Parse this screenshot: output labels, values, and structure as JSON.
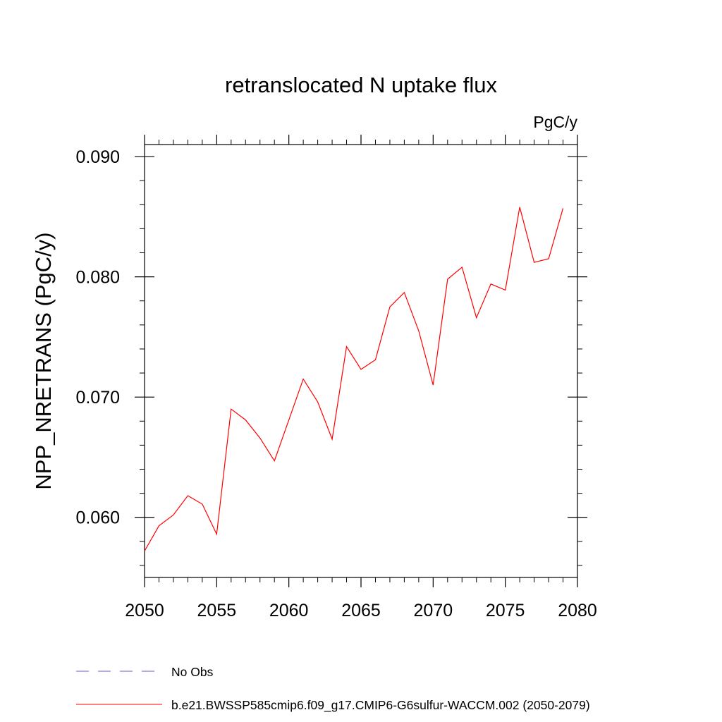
{
  "chart_data": {
    "type": "line",
    "title": "retranslocated N uptake flux",
    "units": "PgC/y",
    "xlabel": "",
    "ylabel": "NPP_NRETRANS  (PgC/y)",
    "xlim": [
      2050,
      2080
    ],
    "ylim": [
      0.055,
      0.091
    ],
    "x_ticks": [
      2050,
      2055,
      2060,
      2065,
      2070,
      2075,
      2080
    ],
    "y_ticks": [
      0.06,
      0.07,
      0.08,
      0.09
    ],
    "y_tick_labels": [
      "0.060",
      "0.070",
      "0.080",
      "0.090"
    ],
    "x": [
      2050,
      2051,
      2052,
      2053,
      2054,
      2055,
      2056,
      2057,
      2058,
      2059,
      2060,
      2061,
      2062,
      2063,
      2064,
      2065,
      2066,
      2067,
      2068,
      2069,
      2070,
      2071,
      2072,
      2073,
      2074,
      2075,
      2076,
      2077,
      2078,
      2079
    ],
    "series": [
      {
        "name": "b.e21.BWSSP585cmip6.f09_g17.CMIP6-G6sulfur-WACCM.002 (2050-2079)",
        "color": "#ff0000",
        "values": [
          0.0572,
          0.0593,
          0.0602,
          0.0618,
          0.0611,
          0.0586,
          0.069,
          0.0681,
          0.0666,
          0.0647,
          0.0681,
          0.0715,
          0.0696,
          0.0665,
          0.0742,
          0.0723,
          0.0731,
          0.0775,
          0.0787,
          0.0755,
          0.071,
          0.0798,
          0.0808,
          0.0766,
          0.0794,
          0.0789,
          0.0858,
          0.0812,
          0.0815,
          0.0857
        ]
      }
    ],
    "legend": [
      {
        "label": "No Obs",
        "color": "#6a5acd",
        "style": "dashed"
      },
      {
        "label": "b.e21.BWSSP585cmip6.f09_g17.CMIP6-G6sulfur-WACCM.002 (2050-2079)",
        "color": "#ff0000",
        "style": "solid"
      }
    ],
    "legend_position": "bottom-left",
    "grid": false
  }
}
